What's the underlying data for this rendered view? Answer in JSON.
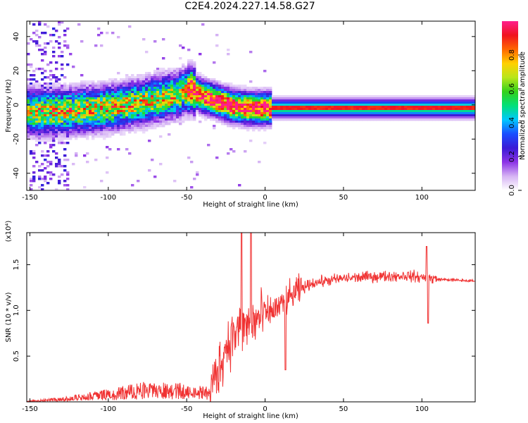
{
  "page_title": "C2E4.2024.227.14.58.G27",
  "chart_data": [
    {
      "type": "heatmap",
      "xlabel": "Height of straight line (km)",
      "ylabel": "Frequency (Hz)",
      "xlim": [
        -152,
        134
      ],
      "ylim": [
        -50,
        49
      ],
      "xticks": [
        -150,
        -100,
        -50,
        0,
        50,
        100
      ],
      "yticks": [
        40,
        20,
        0,
        -20,
        -40
      ],
      "colorbar": {
        "label": "Normalized spectral amplitude",
        "range": [
          0,
          1
        ],
        "ticks": [
          "0.0",
          "0.2",
          "0.4",
          "0.6",
          "0.8"
        ],
        "colors": [
          "#ffffff",
          "#d6b4f4",
          "#8c33e6",
          "#3a1ad6",
          "#1a4dff",
          "#00c8ff",
          "#00e07a",
          "#33d11a",
          "#b8e61a",
          "#ffd000",
          "#ff6600",
          "#f0141e",
          "#ff1e8c"
        ]
      },
      "ridge": [
        {
          "x": -150,
          "f": -4
        },
        {
          "x": -130,
          "f": -4
        },
        {
          "x": -100,
          "f": -2
        },
        {
          "x": -75,
          "f": 2
        },
        {
          "x": -55,
          "f": 6
        },
        {
          "x": -47,
          "f": 9
        },
        {
          "x": -40,
          "f": 5
        },
        {
          "x": -30,
          "f": 2
        },
        {
          "x": -20,
          "f": -1
        },
        {
          "x": -10,
          "f": -2
        },
        {
          "x": 0,
          "f": -2
        },
        {
          "x": 134,
          "f": -2
        }
      ]
    },
    {
      "type": "line",
      "xlabel": "Height of straight line (km)",
      "ylabel": "SNR (10 * v/v)",
      "y_multiplier": "(x10⁴)",
      "xlim": [
        -152,
        134
      ],
      "ylim": [
        0,
        1.85
      ],
      "xticks": [
        -150,
        -100,
        -50,
        0,
        50,
        100
      ],
      "yticks": [
        "0.5",
        "1.0",
        "1.5"
      ],
      "series_color": "#f03232",
      "envelope": [
        {
          "x": -152,
          "y": 0.01
        },
        {
          "x": -130,
          "y": 0.04
        },
        {
          "x": -110,
          "y": 0.09
        },
        {
          "x": -90,
          "y": 0.14
        },
        {
          "x": -75,
          "y": 0.19
        },
        {
          "x": -60,
          "y": 0.18
        },
        {
          "x": -45,
          "y": 0.15
        },
        {
          "x": -35,
          "y": 0.13
        },
        {
          "x": -30,
          "y": 0.35
        },
        {
          "x": -25,
          "y": 0.6
        },
        {
          "x": -20,
          "y": 0.75
        },
        {
          "x": -10,
          "y": 0.85
        },
        {
          "x": 0,
          "y": 0.95
        },
        {
          "x": 10,
          "y": 1.05
        },
        {
          "x": 20,
          "y": 1.2
        },
        {
          "x": 30,
          "y": 1.3
        },
        {
          "x": 50,
          "y": 1.35
        },
        {
          "x": 70,
          "y": 1.37
        },
        {
          "x": 90,
          "y": 1.38
        },
        {
          "x": 110,
          "y": 1.34
        },
        {
          "x": 134,
          "y": 1.32
        }
      ],
      "spikes": [
        {
          "x": -15,
          "y": 1.85
        },
        {
          "x": -9,
          "y": 1.85
        },
        {
          "x": 103,
          "y": 1.7
        },
        {
          "x": 104,
          "y": 0.86
        },
        {
          "x": 13,
          "y": 0.35
        }
      ]
    }
  ]
}
